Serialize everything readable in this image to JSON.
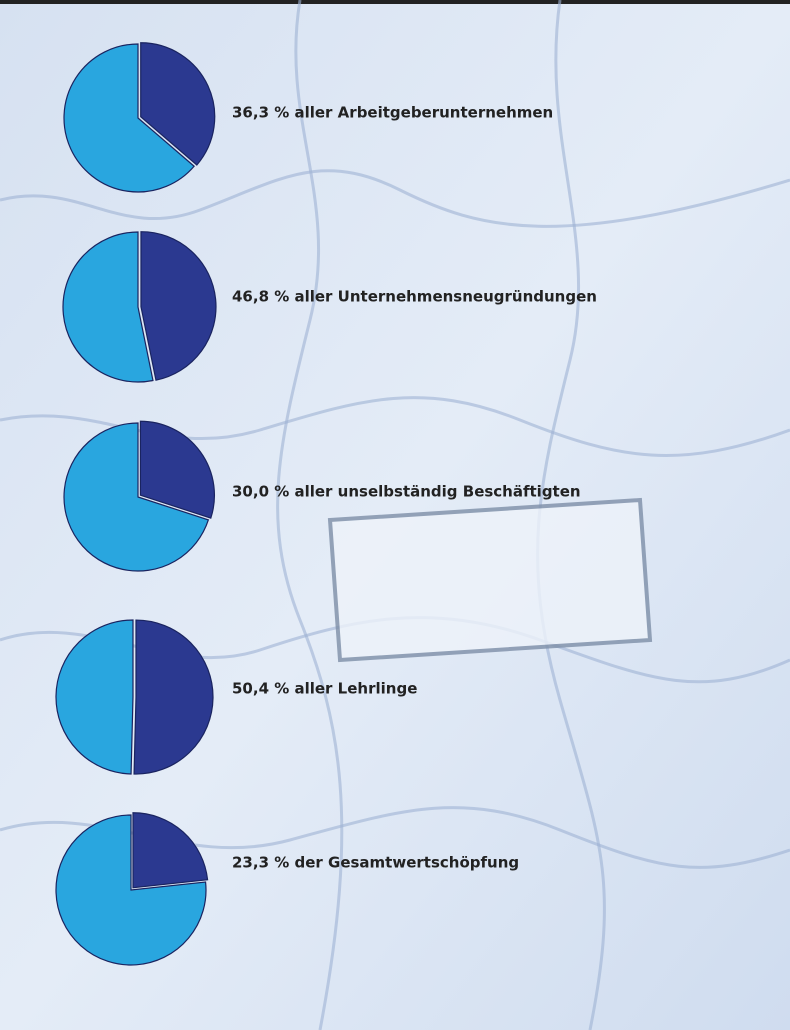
{
  "chart_data": [
    {
      "type": "pie",
      "values": [
        36.3,
        63.7
      ],
      "value_labels": [
        "36,3 % aller Arbeitgeberunternehmen",
        null
      ],
      "colors": [
        "#2b3990",
        "#29a6df"
      ]
    },
    {
      "type": "pie",
      "values": [
        46.8,
        53.2
      ],
      "value_labels": [
        "46,8 % aller Unternehmensneugründungen",
        null
      ],
      "colors": [
        "#2b3990",
        "#29a6df"
      ]
    },
    {
      "type": "pie",
      "values": [
        30.0,
        70.0
      ],
      "value_labels": [
        "30,0 % aller unselbständig Beschäftigten",
        null
      ],
      "colors": [
        "#2b3990",
        "#29a6df"
      ]
    },
    {
      "type": "pie",
      "values": [
        50.4,
        49.6
      ],
      "value_labels": [
        "50,4 % aller Lehrlinge",
        null
      ],
      "colors": [
        "#2b3990",
        "#29a6df"
      ]
    },
    {
      "type": "pie",
      "values": [
        23.3,
        76.7
      ],
      "value_labels": [
        "23,3 % der Gesamtwertschöpfung",
        null
      ],
      "colors": [
        "#2b3990",
        "#29a6df"
      ]
    }
  ]
}
